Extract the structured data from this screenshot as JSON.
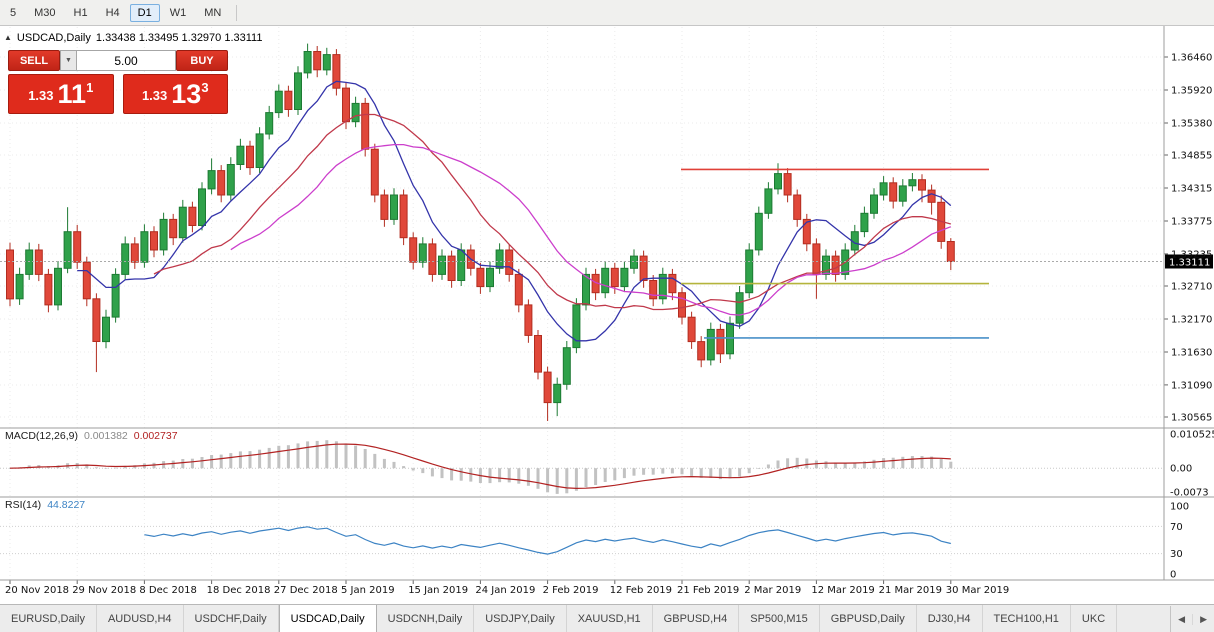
{
  "icons": {
    "marker": "▲",
    "dropdown": "▼",
    "scroll_left": "◀",
    "scroll_right": "▶"
  },
  "colors": {
    "candle_up": "#2fa14a",
    "candle_up_border": "#1d7a33",
    "candle_down": "#e0483a",
    "candle_down_border": "#b22d20",
    "ma_fast": "#3434aa",
    "ma_mid": "#c0394b",
    "ma_slow": "#cc3fcc",
    "macd_hist": "#c2c2c2",
    "macd_signal": "#b22222",
    "rsi": "#3c83c4",
    "accent_red": "#df2b1c",
    "price_marker_bg": "#000000"
  },
  "toolbar": {
    "timeframes": [
      {
        "label": "5",
        "active": false
      },
      {
        "label": "M30",
        "active": false
      },
      {
        "label": "H1",
        "active": false
      },
      {
        "label": "H4",
        "active": false
      },
      {
        "label": "D1",
        "active": true
      },
      {
        "label": "W1",
        "active": false
      },
      {
        "label": "MN",
        "active": false
      }
    ]
  },
  "chart": {
    "symbol_label": "USDCAD,Daily",
    "ohlc_label": "1.33438 1.33495 1.32970 1.33111"
  },
  "one_click": {
    "sell_label": "SELL",
    "buy_label": "BUY",
    "volume": "5.00",
    "sell_quote": {
      "prefix": "1.33",
      "big": "11",
      "sup": "1"
    },
    "buy_quote": {
      "prefix": "1.33",
      "big": "13",
      "sup": "3"
    }
  },
  "price_axis": {
    "labels": [
      "1.36460",
      "1.35920",
      "1.35380",
      "1.34855",
      "1.34315",
      "1.33775",
      "1.33235",
      "1.32710",
      "1.32170",
      "1.31630",
      "1.31090",
      "1.30565"
    ],
    "current": "1.33111"
  },
  "indicators": {
    "macd": {
      "label": "MACD(12,26,9)",
      "value_main": "0.001382",
      "value_signal": "0.002737",
      "axis": [
        "0.010525",
        "0.00",
        "-0.0073"
      ]
    },
    "rsi": {
      "label": "RSI(14)",
      "value": "44.8227",
      "axis": [
        "100",
        "70",
        "30",
        "0"
      ],
      "levels": [
        70,
        30
      ]
    }
  },
  "tabs": {
    "items": [
      {
        "label": "EURUSD,Daily",
        "active": false
      },
      {
        "label": "AUDUSD,H4",
        "active": false
      },
      {
        "label": "USDCHF,Daily",
        "active": false
      },
      {
        "label": "USDCAD,Daily",
        "active": true
      },
      {
        "label": "USDCNH,Daily",
        "active": false
      },
      {
        "label": "USDJPY,Daily",
        "active": false
      },
      {
        "label": "XAUUSD,H1",
        "active": false
      },
      {
        "label": "GBPUSD,H4",
        "active": false
      },
      {
        "label": "SP500,M15",
        "active": false
      },
      {
        "label": "GBPUSD,Daily",
        "active": false
      },
      {
        "label": "DJ30,H4",
        "active": false
      },
      {
        "label": "TECH100,H1",
        "active": false
      },
      {
        "label": "UKC",
        "active": false
      }
    ]
  },
  "chart_data": {
    "type": "candlestick",
    "symbol": "USDCAD",
    "timeframe": "Daily",
    "ohlc_display": {
      "open": "1.33438",
      "high": "1.33495",
      "low": "1.32970",
      "close": "1.33111"
    },
    "bid": 1.33111,
    "ask": 1.33133,
    "price_axis_labels": [
      1.3646,
      1.3592,
      1.3538,
      1.34855,
      1.34315,
      1.33775,
      1.33235,
      1.3271,
      1.3217,
      1.3163,
      1.3109,
      1.30565
    ],
    "date_labels": [
      "20 Nov 2018",
      "29 Nov 2018",
      "8 Dec 2018",
      "18 Dec 2018",
      "27 Dec 2018",
      "5 Jan 2019",
      "15 Jan 2019",
      "24 Jan 2019",
      "2 Feb 2019",
      "12 Feb 2019",
      "21 Feb 2019",
      "2 Mar 2019",
      "12 Mar 2019",
      "21 Mar 2019",
      "30 Mar 2019"
    ],
    "label_every": 7,
    "price_range": {
      "top_label": 1.3646,
      "bottom_label": 1.30565
    },
    "candles": [
      [
        1.333,
        1.3342,
        1.3238,
        1.325
      ],
      [
        1.325,
        1.3301,
        1.324,
        1.329
      ],
      [
        1.329,
        1.3342,
        1.3281,
        1.333
      ],
      [
        1.333,
        1.334,
        1.3279,
        1.329
      ],
      [
        1.329,
        1.3299,
        1.3228,
        1.324
      ],
      [
        1.324,
        1.3312,
        1.3231,
        1.33
      ],
      [
        1.33,
        1.34,
        1.3292,
        1.336
      ],
      [
        1.336,
        1.3371,
        1.3299,
        1.331
      ],
      [
        1.331,
        1.3319,
        1.3238,
        1.325
      ],
      [
        1.325,
        1.3259,
        1.313,
        1.318
      ],
      [
        1.318,
        1.3232,
        1.3169,
        1.322
      ],
      [
        1.322,
        1.33,
        1.3211,
        1.329
      ],
      [
        1.329,
        1.3352,
        1.3282,
        1.334
      ],
      [
        1.334,
        1.3351,
        1.3299,
        1.331
      ],
      [
        1.331,
        1.3372,
        1.3301,
        1.336
      ],
      [
        1.336,
        1.3369,
        1.3318,
        1.333
      ],
      [
        1.333,
        1.3391,
        1.3321,
        1.338
      ],
      [
        1.338,
        1.3389,
        1.3338,
        1.335
      ],
      [
        1.335,
        1.3412,
        1.3342,
        1.34
      ],
      [
        1.34,
        1.3409,
        1.3359,
        1.337
      ],
      [
        1.337,
        1.3441,
        1.3362,
        1.343
      ],
      [
        1.343,
        1.348,
        1.3421,
        1.346
      ],
      [
        1.346,
        1.3469,
        1.3408,
        1.342
      ],
      [
        1.342,
        1.3482,
        1.3411,
        1.347
      ],
      [
        1.347,
        1.3512,
        1.3461,
        1.35
      ],
      [
        1.35,
        1.3509,
        1.3453,
        1.3465
      ],
      [
        1.3465,
        1.3531,
        1.3456,
        1.352
      ],
      [
        1.352,
        1.3566,
        1.3511,
        1.3555
      ],
      [
        1.3555,
        1.3601,
        1.3546,
        1.359
      ],
      [
        1.359,
        1.3599,
        1.3548,
        1.356
      ],
      [
        1.356,
        1.3631,
        1.3551,
        1.362
      ],
      [
        1.362,
        1.3668,
        1.3611,
        1.3655
      ],
      [
        1.3655,
        1.3664,
        1.3613,
        1.3625
      ],
      [
        1.3625,
        1.3661,
        1.3616,
        1.365
      ],
      [
        1.365,
        1.3659,
        1.3583,
        1.3595
      ],
      [
        1.3595,
        1.3604,
        1.3528,
        1.354
      ],
      [
        1.354,
        1.3581,
        1.3531,
        1.357
      ],
      [
        1.357,
        1.3579,
        1.3483,
        1.3495
      ],
      [
        1.3495,
        1.3504,
        1.3408,
        1.342
      ],
      [
        1.342,
        1.3429,
        1.3368,
        1.338
      ],
      [
        1.338,
        1.3431,
        1.3371,
        1.342
      ],
      [
        1.342,
        1.3429,
        1.3338,
        1.335
      ],
      [
        1.335,
        1.3359,
        1.3298,
        1.331
      ],
      [
        1.331,
        1.3351,
        1.3301,
        1.334
      ],
      [
        1.334,
        1.3349,
        1.3278,
        1.329
      ],
      [
        1.329,
        1.3331,
        1.3281,
        1.332
      ],
      [
        1.332,
        1.3329,
        1.3268,
        1.328
      ],
      [
        1.328,
        1.3341,
        1.3271,
        1.333
      ],
      [
        1.333,
        1.3339,
        1.3288,
        1.33
      ],
      [
        1.33,
        1.3309,
        1.3258,
        1.327
      ],
      [
        1.327,
        1.3311,
        1.3261,
        1.33
      ],
      [
        1.33,
        1.3341,
        1.3291,
        1.333
      ],
      [
        1.333,
        1.3339,
        1.3278,
        1.329
      ],
      [
        1.329,
        1.3299,
        1.3228,
        1.324
      ],
      [
        1.324,
        1.3249,
        1.3178,
        1.319
      ],
      [
        1.319,
        1.3199,
        1.3118,
        1.313
      ],
      [
        1.313,
        1.3139,
        1.305,
        1.308
      ],
      [
        1.308,
        1.3121,
        1.3058,
        1.311
      ],
      [
        1.311,
        1.3181,
        1.3101,
        1.317
      ],
      [
        1.317,
        1.3251,
        1.3161,
        1.324
      ],
      [
        1.324,
        1.3301,
        1.3231,
        1.329
      ],
      [
        1.329,
        1.3299,
        1.3248,
        1.326
      ],
      [
        1.326,
        1.3311,
        1.3251,
        1.33
      ],
      [
        1.33,
        1.3309,
        1.3258,
        1.327
      ],
      [
        1.327,
        1.3311,
        1.3261,
        1.33
      ],
      [
        1.33,
        1.3331,
        1.3291,
        1.332
      ],
      [
        1.332,
        1.3329,
        1.3268,
        1.328
      ],
      [
        1.328,
        1.3289,
        1.3238,
        1.325
      ],
      [
        1.325,
        1.3301,
        1.3241,
        1.329
      ],
      [
        1.329,
        1.3299,
        1.3248,
        1.326
      ],
      [
        1.326,
        1.3269,
        1.3208,
        1.322
      ],
      [
        1.322,
        1.3229,
        1.3168,
        1.318
      ],
      [
        1.318,
        1.3189,
        1.3138,
        1.315
      ],
      [
        1.315,
        1.3211,
        1.3141,
        1.32
      ],
      [
        1.32,
        1.3209,
        1.3145,
        1.316
      ],
      [
        1.316,
        1.3221,
        1.3151,
        1.321
      ],
      [
        1.321,
        1.3271,
        1.3201,
        1.326
      ],
      [
        1.326,
        1.3341,
        1.3251,
        1.333
      ],
      [
        1.333,
        1.3401,
        1.3321,
        1.339
      ],
      [
        1.339,
        1.3441,
        1.3381,
        1.343
      ],
      [
        1.343,
        1.3472,
        1.3421,
        1.3455
      ],
      [
        1.3455,
        1.3464,
        1.3408,
        1.342
      ],
      [
        1.342,
        1.3429,
        1.3368,
        1.338
      ],
      [
        1.338,
        1.3389,
        1.3328,
        1.334
      ],
      [
        1.334,
        1.3349,
        1.325,
        1.329
      ],
      [
        1.329,
        1.3331,
        1.3281,
        1.332
      ],
      [
        1.332,
        1.3329,
        1.3278,
        1.329
      ],
      [
        1.329,
        1.3341,
        1.3281,
        1.333
      ],
      [
        1.333,
        1.3371,
        1.3321,
        1.336
      ],
      [
        1.336,
        1.3401,
        1.3351,
        1.339
      ],
      [
        1.339,
        1.3431,
        1.3381,
        1.342
      ],
      [
        1.342,
        1.3451,
        1.3411,
        1.344
      ],
      [
        1.344,
        1.3449,
        1.3398,
        1.341
      ],
      [
        1.341,
        1.3446,
        1.3401,
        1.3435
      ],
      [
        1.3435,
        1.3456,
        1.3426,
        1.3445
      ],
      [
        1.3445,
        1.3454,
        1.3408,
        1.3428
      ],
      [
        1.3428,
        1.3437,
        1.3388,
        1.3408
      ],
      [
        1.3408,
        1.3419,
        1.3332,
        1.3344
      ],
      [
        1.33438,
        1.33495,
        1.3297,
        1.33111
      ]
    ],
    "overlays": {
      "moving_averages": [
        {
          "name": "fast",
          "period": 8,
          "color": "#3434aa"
        },
        {
          "name": "mid",
          "period": 16,
          "color": "#c0394b"
        },
        {
          "name": "slow",
          "period": 24,
          "color": "#cc3fcc"
        }
      ],
      "hlines": [
        {
          "price": 1.3462,
          "color": "#e04038",
          "x1_frac": 0.585,
          "x2_frac": 0.85
        },
        {
          "price": 1.3275,
          "color": "#b4b43c",
          "x1_frac": 0.585,
          "x2_frac": 0.85
        },
        {
          "price": 1.3186,
          "color": "#4a90c8",
          "x1_frac": 0.605,
          "x2_frac": 0.85
        }
      ],
      "current_price": 1.33111
    },
    "macd": {
      "fast": 12,
      "slow": 26,
      "signal": 9,
      "range": [
        -0.0073,
        0.010525
      ]
    },
    "rsi": {
      "period": 14,
      "range": [
        0,
        100
      ]
    }
  }
}
